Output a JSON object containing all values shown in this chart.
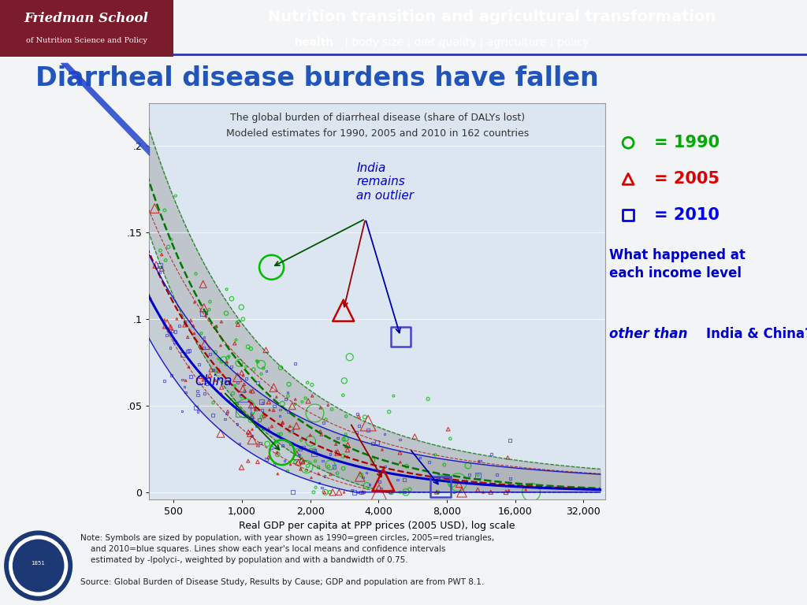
{
  "header_bg_color": "#9B2335",
  "header_logo_bg": "#7A1C2C",
  "header_text1": "Nutrition transition and agricultural transformation",
  "header_text2_bold": "health",
  "header_text2_rest": " | body size | diet quality | agriculture | policy",
  "school_text1": "Friedman School",
  "school_text2": "of Nutrition Science and Policy",
  "title": "Diarrheal disease burdens have fallen",
  "chart_title1": "The global burden of diarrheal disease (share of DALYs lost)",
  "chart_title2": "Modeled estimates for 1990, 2005 and 2010 in 162 countries",
  "xlabel": "Real GDP per capita at PPP prices (2005 USD), log scale",
  "ylabel_ticks": [
    "0",
    ".05",
    ".1",
    ".15",
    ".2"
  ],
  "xtick_labels": [
    "500",
    "1,000",
    "2,000",
    "4,000",
    "8,000",
    "16,000",
    "32,000"
  ],
  "xtick_values": [
    500,
    1000,
    2000,
    4000,
    8000,
    16000,
    32000
  ],
  "note_line1": "Note: Symbols are sized by population, with year shown as 1990=green circles, 2005=red triangles,",
  "note_line2": "    and 2010=blue squares. Lines show each year's local means and confidence intervals",
  "note_line3": "    estimated by -lpolyci-, weighted by population and with a bandwidth of 0.75.",
  "note_line4": "",
  "note_line5": "Source: Global Burden of Disease Study, Results by Cause; GDP and population are from PWT 8.1.",
  "legend_1990_color": "#00AA00",
  "legend_2005_color": "#DD0000",
  "legend_2010_color": "#0000EE",
  "chart_bg_color": "#DCE6F0",
  "slide_bg_color": "#F2F4F6",
  "line_1990_color": "#007700",
  "line_2005_color": "#AA0000",
  "line_2010_color": "#0000CC",
  "scatter_1990_color": "#00BB00",
  "scatter_2005_color": "#CC0000",
  "scatter_2010_color": "#4444CC"
}
